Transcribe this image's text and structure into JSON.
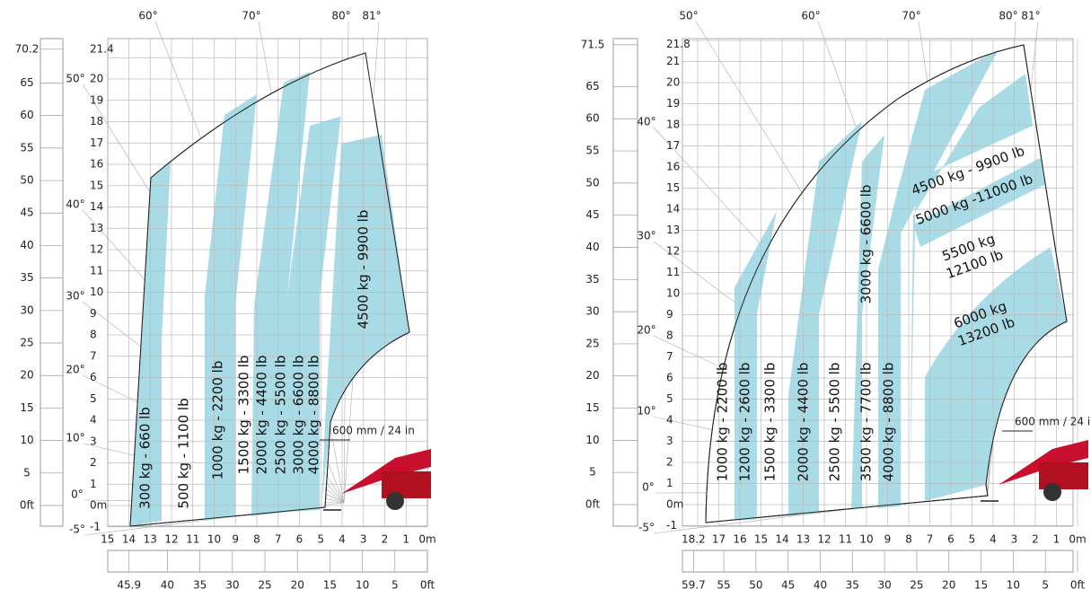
{
  "left_chart": {
    "angles_top": [
      "60°",
      "70°",
      "80°",
      "81°"
    ],
    "angles_left": [
      "50°",
      "40°",
      "30°",
      "20°",
      "10°",
      "0°",
      "-5°"
    ],
    "height_m": [
      "21.4",
      "20",
      "19",
      "18",
      "17",
      "16",
      "15",
      "14",
      "13",
      "12",
      "11",
      "10",
      "9",
      "8",
      "7",
      "6",
      "5",
      "4",
      "3",
      "2",
      "1",
      "0m",
      "-1"
    ],
    "height_ft": [
      "70.2",
      "65",
      "60",
      "55",
      "50",
      "45",
      "40",
      "35",
      "30",
      "25",
      "20",
      "15",
      "10",
      "5",
      "0ft"
    ],
    "reach_m": [
      "15",
      "14",
      "13",
      "12",
      "11",
      "10",
      "9",
      "8",
      "7",
      "6",
      "5",
      "4",
      "3",
      "2",
      "1",
      "0m"
    ],
    "reach_ft": [
      "45.9",
      "40",
      "35",
      "30",
      "25",
      "20",
      "15",
      "10",
      "5",
      "0ft"
    ],
    "loads": [
      "300 kg - 660 lb",
      "500 kg - 1100 lb",
      "1000 kg - 2200 lb",
      "1500 kg - 3300 lb",
      "2000 kg - 4400 lb",
      "2500 kg - 5500 lb",
      "3000 kg - 6600 lb",
      "4000 kg - 8800 lb",
      "4500 kg - 9900 lb"
    ],
    "clearance": "600 mm / 24 in"
  },
  "right_chart": {
    "angles_top": [
      "50°",
      "60°",
      "70°",
      "80°",
      "81°"
    ],
    "angles_left": [
      "40°",
      "30°",
      "20°",
      "10°",
      "0°",
      "-5°"
    ],
    "height_m": [
      "21.8",
      "21",
      "20",
      "19",
      "18",
      "17",
      "16",
      "15",
      "14",
      "13",
      "12",
      "11",
      "10",
      "9",
      "8",
      "7",
      "6",
      "5",
      "4",
      "3",
      "2",
      "1",
      "0m",
      "-1"
    ],
    "height_ft": [
      "71.5",
      "65",
      "60",
      "55",
      "50",
      "45",
      "40",
      "35",
      "30",
      "25",
      "20",
      "15",
      "10",
      "5",
      "0ft"
    ],
    "reach_m": [
      "18.2",
      "17",
      "16",
      "15",
      "14",
      "13",
      "12",
      "11",
      "10",
      "9",
      "8",
      "7",
      "6",
      "5",
      "4",
      "3",
      "2",
      "1",
      "0m"
    ],
    "reach_ft": [
      "59.7",
      "55",
      "50",
      "45",
      "40",
      "35",
      "30",
      "25",
      "20",
      "15",
      "10",
      "5",
      "0ft"
    ],
    "loads": [
      "1000 kg - 2200 lb",
      "1200 kg - 2600 lb",
      "1500 kg - 3300 lb",
      "2000 kg - 4400 lb",
      "2500 kg - 5500 lb",
      "3000 kg - 6600 lb",
      "3500 kg - 7700 lb",
      "4000 kg - 8800 lb"
    ],
    "loads_tilted": [
      [
        "4500 kg - 9900 lb"
      ],
      [
        "5000 kg -11000 lb"
      ],
      [
        "5500 kg",
        "12100 lb"
      ],
      [
        "6000 kg",
        "13200 lb"
      ]
    ],
    "clearance": "600 mm / 24 in"
  }
}
